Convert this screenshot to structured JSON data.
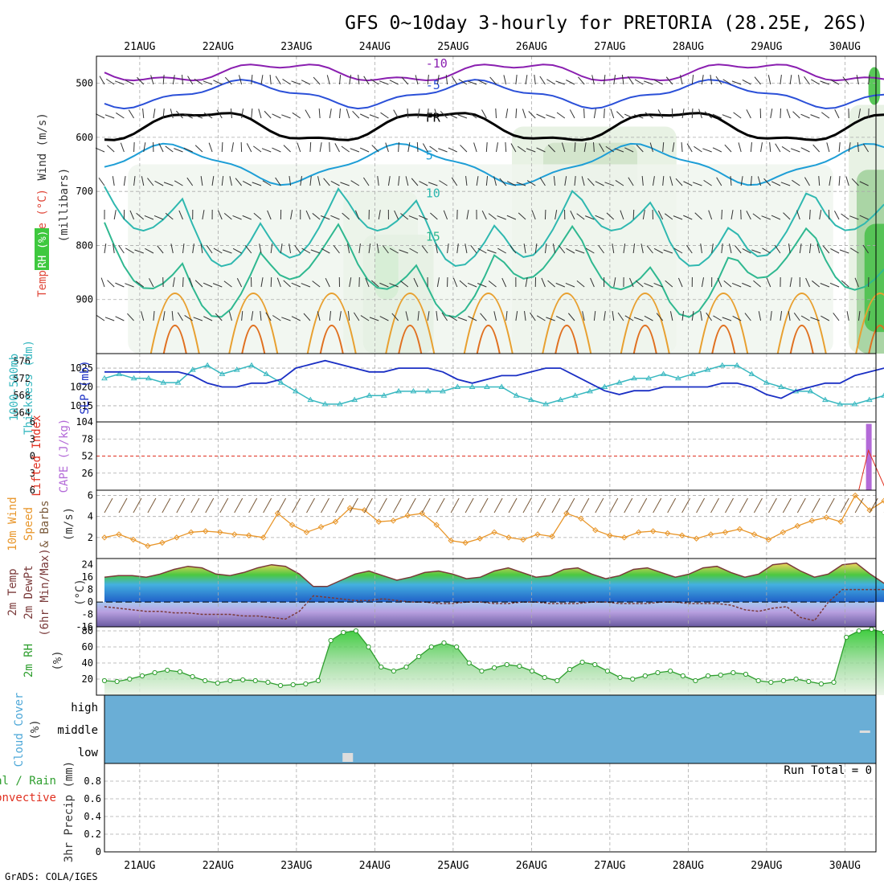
{
  "title": "GFS 0~10day 3-hourly for PRETORIA (28.25E, 26S)",
  "credit": "GrADS: COLA/IGES",
  "dates": [
    "21AUG",
    "22AUG",
    "23AUG",
    "24AUG",
    "25AUG",
    "26AUG",
    "27AUG",
    "28AUG",
    "29AUG",
    "30AUG"
  ],
  "panel_labels": {
    "upper_wind": "Wind (m/s)",
    "upper_temp": "Temperature (°C)",
    "upper_rh": "RH (%)",
    "upper_mb": "(millibars)",
    "thick_1": "1000-500mb",
    "thick_2": "Thickness (dm)",
    "slp": "SLP (mb)",
    "li": "Lifted Index",
    "cape": "CAPE (J/kg)",
    "wind10_1": "10m Wind",
    "wind10_2": "Speed",
    "wind10_3": "& Barbs",
    "wind10_unit": "(m/s)",
    "temp_1": "2m Temp",
    "temp_2": "2m DewPt",
    "temp_3": "(6hr Min/Max)",
    "temp_unit": "(°C)",
    "rh_1": "2m RH",
    "rh_unit": "(%)",
    "cloud_1": "Cloud Cover",
    "cloud_unit": "(%)",
    "precip_1": "Total / Rain",
    "precip_2": "Convective",
    "precip_3": "3hr Precip (mm)",
    "run_total": "Run Total = 0",
    "fr": "FR"
  },
  "colors": {
    "title": "#000000",
    "grid": "#aaaaaa",
    "slp": "#1a2fc4",
    "thickness": "#38b8c0",
    "cape": "#b36ad8",
    "lifted": "#e03020",
    "wind10": "#e8962a",
    "temp_line": "#7a3a3a",
    "rh_line": "#2e9e2e",
    "cloud": "#6aaed6",
    "rh_fill": "#dcebd8"
  },
  "chart_data": [
    {
      "type": "contour",
      "name": "upper_air",
      "y_axis": "pressure (mb)",
      "yticks": [
        500,
        600,
        700,
        800,
        900
      ],
      "ylim": [
        1000,
        450
      ],
      "contours": [
        {
          "label": "-10",
          "level": 480,
          "color": "#8a1fb0"
        },
        {
          "label": "-5",
          "level": 520,
          "color": "#2b50d8"
        },
        {
          "label": "FR",
          "level": 580,
          "color": "#000000"
        },
        {
          "label": "5",
          "level": 650,
          "color": "#1e9ed6"
        },
        {
          "label": "10",
          "level": 720,
          "color": "#2fb8b0"
        },
        {
          "label": "15",
          "level": 800,
          "color": "#2fb890"
        }
      ]
    },
    {
      "type": "line",
      "name": "thickness_slp",
      "thickness_ticks": [
        564,
        568,
        572,
        576
      ],
      "slp_ticks": [
        1015,
        1020,
        1025
      ],
      "thickness": [
        572,
        573,
        572,
        572,
        571,
        571,
        574,
        575,
        573,
        574,
        575,
        573,
        571,
        569,
        567,
        566,
        566,
        567,
        568,
        568,
        569,
        569,
        569,
        569,
        570,
        570,
        570,
        570,
        568,
        567,
        566,
        567,
        568,
        569,
        570,
        571,
        572,
        572,
        573,
        572,
        573,
        574,
        575,
        575,
        573,
        571,
        570,
        569,
        569,
        567,
        566,
        566,
        567,
        568
      ],
      "slp": [
        1024,
        1024,
        1024,
        1024,
        1024,
        1024,
        1023,
        1021,
        1020,
        1020,
        1021,
        1021,
        1022,
        1025,
        1026,
        1027,
        1026,
        1025,
        1024,
        1024,
        1025,
        1025,
        1025,
        1024,
        1022,
        1021,
        1022,
        1023,
        1023,
        1024,
        1025,
        1025,
        1023,
        1021,
        1019,
        1018,
        1019,
        1019,
        1020,
        1020,
        1020,
        1020,
        1021,
        1021,
        1020,
        1018,
        1017,
        1019,
        1020,
        1021,
        1021,
        1023,
        1024,
        1025
      ]
    },
    {
      "type": "bar",
      "name": "cape_li",
      "cape_ticks": [
        26,
        52,
        78,
        104
      ],
      "li_ticks": [
        -6,
        -3,
        0,
        3,
        6
      ],
      "cape_bar": {
        "day": 9.75,
        "value": 101
      },
      "li_peak": {
        "day": 9.75,
        "value": -1
      }
    },
    {
      "type": "line",
      "name": "wind10",
      "yticks": [
        2,
        4,
        6
      ],
      "ylim": [
        0,
        6.5
      ],
      "values": [
        2,
        2.3,
        1.8,
        1.2,
        1.5,
        2,
        2.5,
        2.6,
        2.5,
        2.3,
        2.2,
        2.0,
        4.3,
        3.2,
        2.5,
        3.0,
        3.5,
        4.8,
        4.6,
        3.5,
        3.6,
        4.1,
        4.3,
        3.2,
        1.7,
        1.5,
        1.9,
        2.5,
        2.0,
        1.8,
        2.3,
        2.1,
        4.3,
        3.8,
        2.7,
        2.2,
        2.0,
        2.5,
        2.6,
        2.4,
        2.2,
        1.9,
        2.3,
        2.5,
        2.8,
        2.3,
        1.8,
        2.5,
        3.1,
        3.6,
        3.9,
        3.5,
        6.0,
        4.6,
        5.5
      ]
    },
    {
      "type": "area",
      "name": "temp_dewpt",
      "yticks": [
        -16,
        -8,
        0,
        8,
        16,
        24
      ],
      "ylim": [
        -16,
        28
      ],
      "temp": [
        16,
        17,
        17,
        16,
        18,
        21,
        23,
        22,
        18,
        17,
        19,
        22,
        24,
        23,
        18,
        10,
        10,
        14,
        18,
        20,
        17,
        14,
        16,
        19,
        20,
        18,
        15,
        16,
        20,
        22,
        19,
        16,
        17,
        21,
        22,
        18,
        15,
        17,
        21,
        22,
        19,
        16,
        18,
        22,
        23,
        19,
        16,
        18,
        24,
        25,
        20,
        16,
        18,
        24,
        25,
        18,
        12
      ],
      "dewpt": [
        -3,
        -4,
        -5,
        -6,
        -6,
        -7,
        -7,
        -8,
        -8,
        -8,
        -9,
        -9,
        -10,
        -11,
        -6,
        4,
        3,
        2,
        1,
        1,
        2,
        1,
        0,
        0,
        -1,
        -1,
        0,
        0,
        -1,
        -1,
        0,
        0,
        -1,
        -1,
        -1,
        0,
        0,
        -1,
        -1,
        -1,
        0,
        0,
        -1,
        -1,
        -1,
        -2,
        -5,
        -6,
        -4,
        -3,
        -10,
        -12,
        0,
        8,
        8,
        8,
        8
      ]
    },
    {
      "type": "area",
      "name": "rh2m",
      "yticks": [
        20,
        40,
        60,
        80
      ],
      "ylim": [
        0,
        85
      ],
      "values": [
        18,
        17,
        20,
        24,
        28,
        31,
        29,
        23,
        18,
        15,
        18,
        19,
        18,
        16,
        12,
        13,
        14,
        18,
        68,
        78,
        80,
        60,
        35,
        30,
        35,
        48,
        60,
        65,
        60,
        40,
        30,
        34,
        38,
        36,
        30,
        22,
        18,
        32,
        41,
        38,
        30,
        22,
        20,
        24,
        28,
        30,
        24,
        18,
        24,
        25,
        28,
        26,
        18,
        16,
        18,
        20,
        17,
        14,
        16,
        72,
        80,
        82,
        78
      ]
    },
    {
      "type": "bar",
      "name": "cloud_cover",
      "yticks": [
        "high",
        "middle",
        "low"
      ],
      "cover": "full",
      "gaps": [
        {
          "day": 3.1,
          "level": "low"
        },
        {
          "day": 9.7,
          "level": "middle"
        },
        {
          "day": 10.2,
          "level": "low"
        }
      ]
    },
    {
      "type": "bar",
      "name": "precip3hr",
      "yticks": [
        0,
        0.2,
        0.4,
        0.6,
        0.8
      ],
      "ylim": [
        0,
        1
      ],
      "run_total": 0
    }
  ]
}
